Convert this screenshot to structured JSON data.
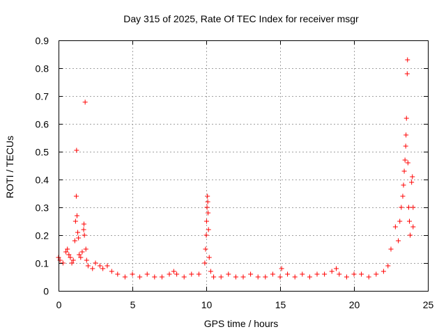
{
  "chart_data": {
    "type": "scatter",
    "title": "Day 315 of 2025, Rate Of TEC Index for receiver msgr",
    "xlabel": "GPS time / hours",
    "ylabel": "ROTI / TECUs",
    "xlim": [
      0,
      25
    ],
    "ylim": [
      0,
      0.9
    ],
    "x_ticks": [
      "0",
      "5",
      "10",
      "15",
      "20",
      "25"
    ],
    "y_ticks": [
      "0",
      "0.1",
      "0.2",
      "0.3",
      "0.4",
      "0.5",
      "0.6",
      "0.7",
      "0.8",
      "0.9"
    ],
    "grid": true,
    "legend": "none",
    "marker": "+",
    "color": "#ff0000",
    "series": [
      {
        "values": [
          [
            0.0,
            0.12
          ],
          [
            0.1,
            0.11
          ],
          [
            0.3,
            0.1
          ],
          [
            0.5,
            0.14
          ],
          [
            0.6,
            0.15
          ],
          [
            0.7,
            0.13
          ],
          [
            0.8,
            0.12
          ],
          [
            0.9,
            0.1
          ],
          [
            1.0,
            0.11
          ],
          [
            1.1,
            0.18
          ],
          [
            1.15,
            0.25
          ],
          [
            1.2,
            0.34
          ],
          [
            1.22,
            0.505
          ],
          [
            1.25,
            0.27
          ],
          [
            1.3,
            0.21
          ],
          [
            1.35,
            0.19
          ],
          [
            1.4,
            0.13
          ],
          [
            1.5,
            0.12
          ],
          [
            1.6,
            0.14
          ],
          [
            1.7,
            0.22
          ],
          [
            1.72,
            0.24
          ],
          [
            1.75,
            0.2
          ],
          [
            1.8,
            0.678
          ],
          [
            1.85,
            0.15
          ],
          [
            1.9,
            0.11
          ],
          [
            2.0,
            0.09
          ],
          [
            2.3,
            0.08
          ],
          [
            2.5,
            0.1
          ],
          [
            2.8,
            0.09
          ],
          [
            3.0,
            0.08
          ],
          [
            3.3,
            0.09
          ],
          [
            3.6,
            0.07
          ],
          [
            4.0,
            0.06
          ],
          [
            4.5,
            0.05
          ],
          [
            5.0,
            0.06
          ],
          [
            5.5,
            0.05
          ],
          [
            6.0,
            0.06
          ],
          [
            6.5,
            0.05
          ],
          [
            7.0,
            0.05
          ],
          [
            7.5,
            0.06
          ],
          [
            7.8,
            0.07
          ],
          [
            8.0,
            0.06
          ],
          [
            8.5,
            0.05
          ],
          [
            9.0,
            0.06
          ],
          [
            9.5,
            0.06
          ],
          [
            9.9,
            0.1
          ],
          [
            9.95,
            0.15
          ],
          [
            10.0,
            0.2
          ],
          [
            10.02,
            0.25
          ],
          [
            10.05,
            0.3
          ],
          [
            10.08,
            0.34
          ],
          [
            10.1,
            0.32
          ],
          [
            10.12,
            0.28
          ],
          [
            10.15,
            0.22
          ],
          [
            10.2,
            0.12
          ],
          [
            10.3,
            0.07
          ],
          [
            10.5,
            0.05
          ],
          [
            11.0,
            0.05
          ],
          [
            11.5,
            0.06
          ],
          [
            12.0,
            0.05
          ],
          [
            12.5,
            0.05
          ],
          [
            13.0,
            0.06
          ],
          [
            13.5,
            0.05
          ],
          [
            14.0,
            0.05
          ],
          [
            14.5,
            0.06
          ],
          [
            15.0,
            0.05
          ],
          [
            15.1,
            0.08
          ],
          [
            15.5,
            0.06
          ],
          [
            16.0,
            0.05
          ],
          [
            16.5,
            0.06
          ],
          [
            17.0,
            0.05
          ],
          [
            17.5,
            0.06
          ],
          [
            18.0,
            0.06
          ],
          [
            18.5,
            0.07
          ],
          [
            18.8,
            0.08
          ],
          [
            19.0,
            0.06
          ],
          [
            19.5,
            0.05
          ],
          [
            20.0,
            0.06
          ],
          [
            20.5,
            0.06
          ],
          [
            21.0,
            0.05
          ],
          [
            21.5,
            0.06
          ],
          [
            22.0,
            0.07
          ],
          [
            22.3,
            0.09
          ],
          [
            22.5,
            0.15
          ],
          [
            22.8,
            0.23
          ],
          [
            23.0,
            0.18
          ],
          [
            23.1,
            0.25
          ],
          [
            23.2,
            0.3
          ],
          [
            23.3,
            0.34
          ],
          [
            23.35,
            0.38
          ],
          [
            23.4,
            0.43
          ],
          [
            23.45,
            0.47
          ],
          [
            23.5,
            0.52
          ],
          [
            23.52,
            0.56
          ],
          [
            23.55,
            0.62
          ],
          [
            23.6,
            0.78
          ],
          [
            23.62,
            0.83
          ],
          [
            23.65,
            0.46
          ],
          [
            23.7,
            0.3
          ],
          [
            23.75,
            0.25
          ],
          [
            23.8,
            0.2
          ],
          [
            23.9,
            0.39
          ],
          [
            23.95,
            0.41
          ],
          [
            24.0,
            0.3
          ],
          [
            24.0,
            0.23
          ]
        ]
      }
    ]
  }
}
